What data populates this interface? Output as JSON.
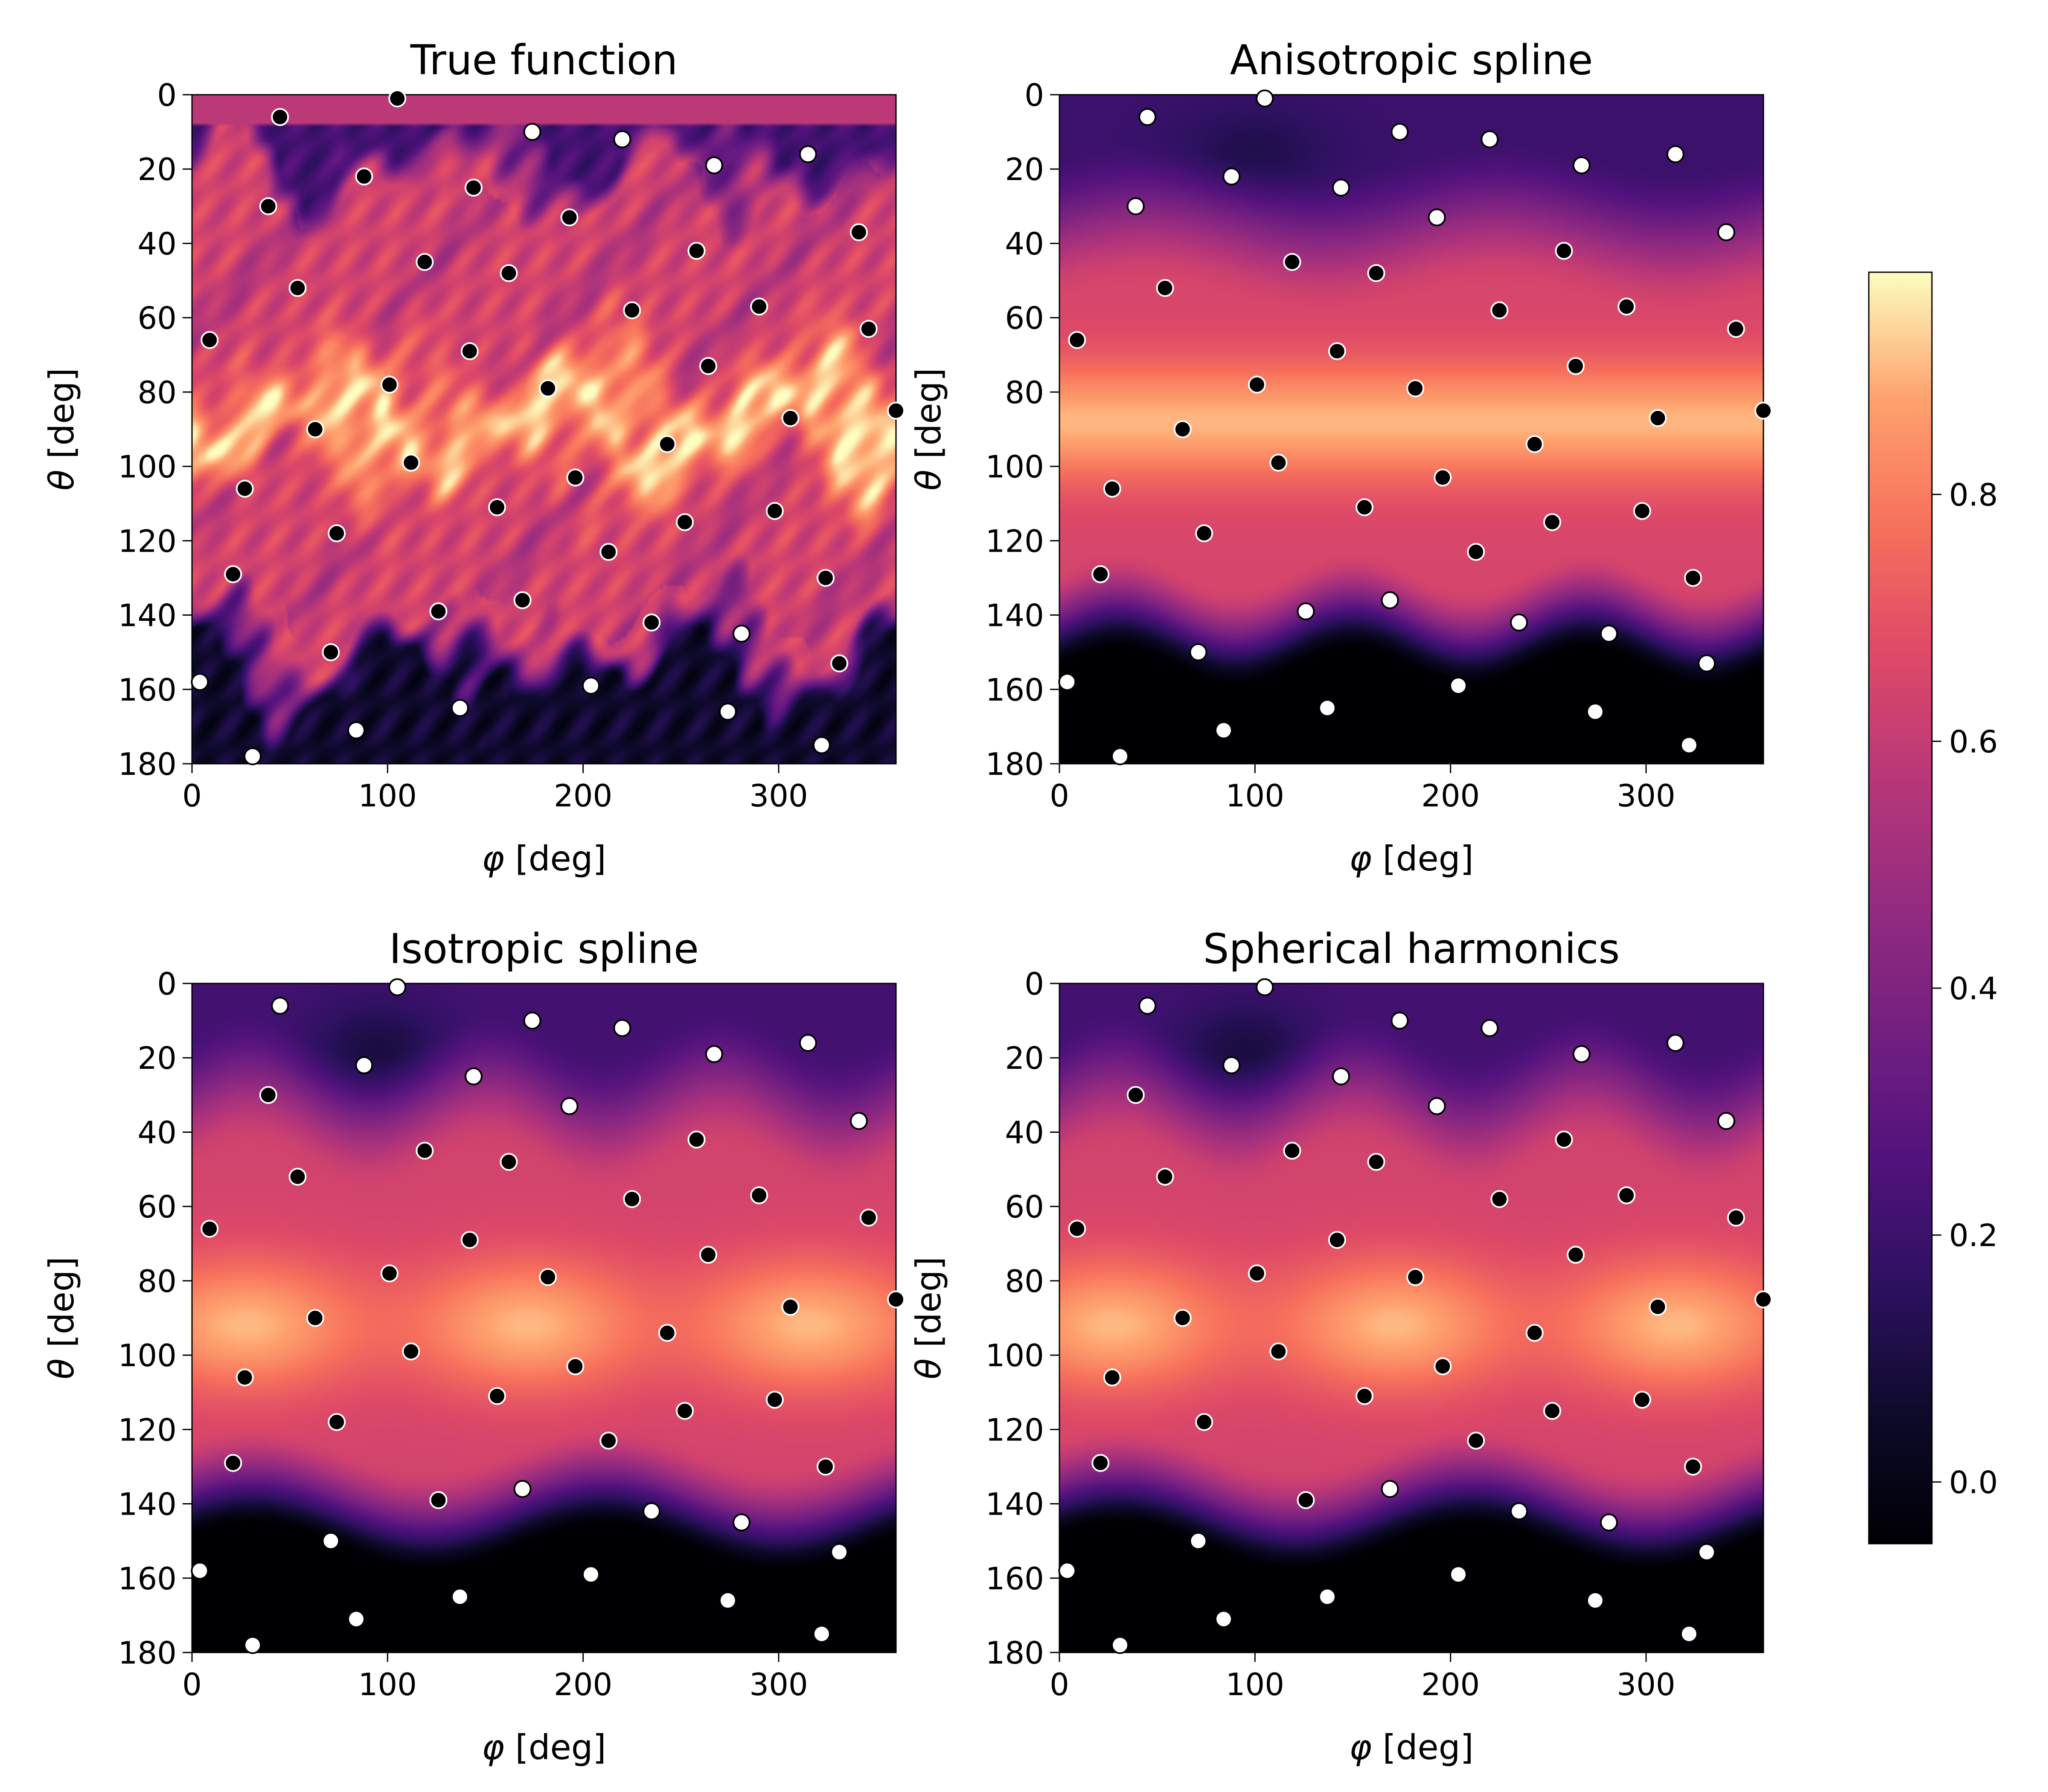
{
  "chart_data": {
    "type": "heatmap",
    "colormap": "magma",
    "colorbar": {
      "range": [
        -0.05,
        0.98
      ],
      "ticks": [
        "0.0",
        "0.2",
        "0.4",
        "0.6",
        "0.8"
      ],
      "tick_values": [
        0.0,
        0.2,
        0.4,
        0.6,
        0.8
      ]
    },
    "axes": {
      "xlabel_symbol": "φ",
      "xlabel_unit": " [deg]",
      "ylabel_symbol": "θ",
      "ylabel_unit": " [deg]",
      "xlim": [
        0,
        360
      ],
      "ylim": [
        180,
        0
      ],
      "xticks": [
        0,
        100,
        200,
        300
      ],
      "yticks": [
        0,
        20,
        40,
        60,
        80,
        100,
        120,
        140,
        160,
        180
      ]
    },
    "panels": [
      {
        "title": "True function",
        "style": "turbulent"
      },
      {
        "title": "Anisotropic spline",
        "style": "smooth_banded"
      },
      {
        "title": "Isotropic spline",
        "style": "smooth_blobby"
      },
      {
        "title": "Spherical harmonics",
        "style": "smooth_blobby"
      }
    ],
    "sample_points": [
      [
        105,
        1
      ],
      [
        45,
        6
      ],
      [
        174,
        10
      ],
      [
        220,
        12
      ],
      [
        315,
        16
      ],
      [
        267,
        19
      ],
      [
        88,
        22
      ],
      [
        144,
        25
      ],
      [
        39,
        30
      ],
      [
        193,
        33
      ],
      [
        341,
        37
      ],
      [
        258,
        42
      ],
      [
        119,
        45
      ],
      [
        162,
        48
      ],
      [
        54,
        52
      ],
      [
        290,
        57
      ],
      [
        225,
        58
      ],
      [
        346,
        63
      ],
      [
        9,
        66
      ],
      [
        142,
        69
      ],
      [
        264,
        73
      ],
      [
        101,
        78
      ],
      [
        182,
        79
      ],
      [
        360,
        85
      ],
      [
        306,
        87
      ],
      [
        63,
        90
      ],
      [
        243,
        94
      ],
      [
        112,
        99
      ],
      [
        196,
        103
      ],
      [
        27,
        106
      ],
      [
        156,
        111
      ],
      [
        298,
        112
      ],
      [
        252,
        115
      ],
      [
        74,
        118
      ],
      [
        213,
        123
      ],
      [
        21,
        129
      ],
      [
        324,
        130
      ],
      [
        169,
        136
      ],
      [
        126,
        139
      ],
      [
        235,
        142
      ],
      [
        281,
        145
      ],
      [
        71,
        150
      ],
      [
        331,
        153
      ],
      [
        4,
        158
      ],
      [
        204,
        159
      ],
      [
        137,
        165
      ],
      [
        274,
        166
      ],
      [
        84,
        171
      ],
      [
        322,
        175
      ],
      [
        31,
        178
      ]
    ]
  }
}
